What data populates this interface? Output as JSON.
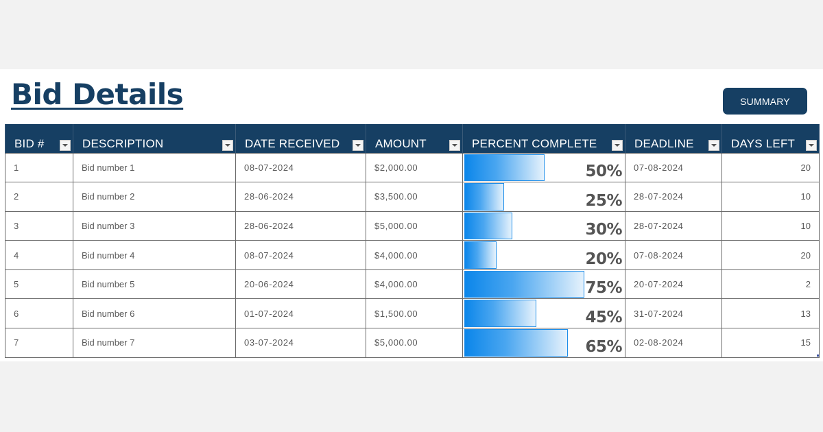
{
  "page": {
    "title": "Bid Details",
    "summary_button": "SUMMARY"
  },
  "colors": {
    "header_bg": "#163f63",
    "header_text": "#ffffff",
    "bar_start": "#0b86ea",
    "bar_end": "#e6f2fc",
    "page_bg": "#f2f2f2"
  },
  "table": {
    "columns": [
      {
        "key": "bid",
        "label": "BID #"
      },
      {
        "key": "description",
        "label": "DESCRIPTION"
      },
      {
        "key": "date_received",
        "label": "DATE RECEIVED"
      },
      {
        "key": "amount",
        "label": "AMOUNT"
      },
      {
        "key": "percent_complete",
        "label": "PERCENT COMPLETE"
      },
      {
        "key": "deadline",
        "label": "DEADLINE"
      },
      {
        "key": "days_left",
        "label": "DAYS LEFT"
      }
    ],
    "rows": [
      {
        "bid": "1",
        "description": "Bid number 1",
        "date_received": "08-07-2024",
        "amount": "$2,000.00",
        "percent_complete": "50%",
        "percent_value": 50,
        "deadline": "07-08-2024",
        "days_left": "20"
      },
      {
        "bid": "2",
        "description": "Bid number 2",
        "date_received": "28-06-2024",
        "amount": "$3,500.00",
        "percent_complete": "25%",
        "percent_value": 25,
        "deadline": "28-07-2024",
        "days_left": "10"
      },
      {
        "bid": "3",
        "description": "Bid number 3",
        "date_received": "28-06-2024",
        "amount": "$5,000.00",
        "percent_complete": "30%",
        "percent_value": 30,
        "deadline": "28-07-2024",
        "days_left": "10"
      },
      {
        "bid": "4",
        "description": "Bid number 4",
        "date_received": "08-07-2024",
        "amount": "$4,000.00",
        "percent_complete": "20%",
        "percent_value": 20,
        "deadline": "07-08-2024",
        "days_left": "20"
      },
      {
        "bid": "5",
        "description": "Bid number 5",
        "date_received": "20-06-2024",
        "amount": "$4,000.00",
        "percent_complete": "75%",
        "percent_value": 75,
        "deadline": "20-07-2024",
        "days_left": "2"
      },
      {
        "bid": "6",
        "description": "Bid number 6",
        "date_received": "01-07-2024",
        "amount": "$1,500.00",
        "percent_complete": "45%",
        "percent_value": 45,
        "deadline": "31-07-2024",
        "days_left": "13"
      },
      {
        "bid": "7",
        "description": "Bid number 7",
        "date_received": "03-07-2024",
        "amount": "$5,000.00",
        "percent_complete": "65%",
        "percent_value": 65,
        "deadline": "02-08-2024",
        "days_left": "15"
      }
    ]
  }
}
